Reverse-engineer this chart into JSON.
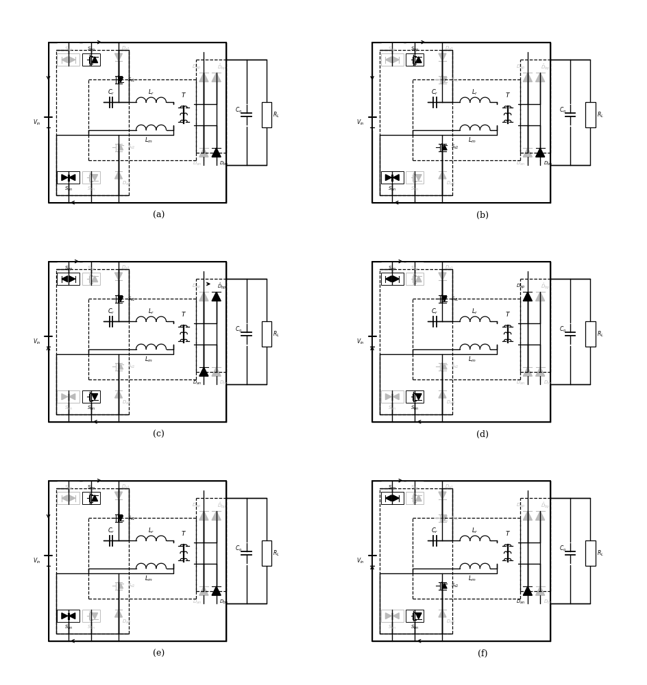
{
  "figure_labels": [
    "(a)",
    "(b)",
    "(c)",
    "(d)",
    "(e)",
    "(f)"
  ],
  "background_color": "#ffffff",
  "black": "#000000",
  "gray": "#bbbbbb",
  "fig_width": 9.45,
  "fig_height": 10.0,
  "dpi": 100
}
